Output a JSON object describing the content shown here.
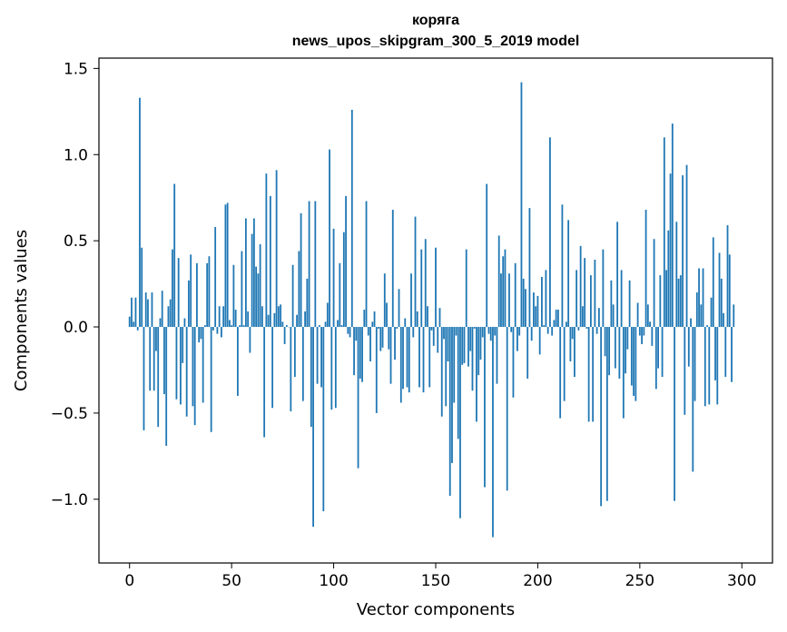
{
  "chart_data": {
    "type": "bar",
    "title": "коряга",
    "subtitle": "news_upos_skipgram_300_5_2019 model",
    "xlabel": "Vector components",
    "ylabel": "Components values",
    "xlim": [
      -15,
      315
    ],
    "ylim": [
      -1.37,
      1.56
    ],
    "xticks": [
      0,
      50,
      100,
      150,
      200,
      250,
      300
    ],
    "yticks": [
      -1.0,
      -0.5,
      0.0,
      0.5,
      1.0,
      1.5
    ],
    "ytick_labels": [
      "−1.0",
      "−0.5",
      "0.0",
      "0.5",
      "1.0",
      "1.5"
    ],
    "bar_color": "#1f77b4",
    "grid": false,
    "values": [
      0.06,
      0.17,
      0.03,
      0.17,
      -0.02,
      1.33,
      0.46,
      -0.6,
      0.2,
      0.16,
      -0.37,
      0.2,
      -0.37,
      -0.14,
      -0.58,
      0.05,
      0.21,
      -0.39,
      -0.69,
      0.12,
      0.16,
      0.45,
      0.83,
      -0.42,
      0.4,
      -0.45,
      -0.21,
      0.05,
      -0.52,
      0.27,
      0.42,
      -0.46,
      -0.57,
      0.37,
      -0.09,
      -0.07,
      -0.44,
      0.01,
      0.37,
      0.41,
      -0.61,
      -0.02,
      0.58,
      -0.04,
      0.12,
      -0.06,
      0.12,
      0.71,
      0.72,
      0.04,
      0.01,
      0.36,
      0.1,
      -0.4,
      0.01,
      0.44,
      0.01,
      0.63,
      0.09,
      -0.15,
      0.54,
      0.63,
      0.35,
      0.31,
      0.48,
      0.12,
      -0.64,
      0.89,
      0.07,
      0.76,
      -0.47,
      0.08,
      0.91,
      0.12,
      0.13,
      0.03,
      -0.1,
      0.01,
      0.0,
      -0.49,
      0.36,
      -0.29,
      0.07,
      0.44,
      0.66,
      -0.43,
      0.09,
      0.28,
      0.73,
      -0.58,
      -1.16,
      0.73,
      -0.33,
      0.01,
      -0.35,
      -1.07,
      0.03,
      0.14,
      1.03,
      -0.48,
      0.57,
      -0.47,
      0.04,
      0.37,
      0.01,
      0.55,
      0.76,
      -0.04,
      -0.06,
      1.26,
      -0.28,
      -0.08,
      -0.82,
      -0.3,
      -0.32,
      0.1,
      0.73,
      -0.05,
      -0.2,
      0.03,
      0.09,
      -0.5,
      -0.01,
      -0.14,
      -0.12,
      0.31,
      0.14,
      -0.13,
      -0.33,
      0.68,
      -0.19,
      -0.01,
      0.22,
      -0.44,
      -0.36,
      0.05,
      -0.35,
      -0.38,
      0.31,
      -0.06,
      0.64,
      0.09,
      -0.35,
      0.45,
      -0.38,
      0.51,
      0.12,
      -0.35,
      -0.02,
      -0.11,
      0.46,
      -0.15,
      0.11,
      -0.52,
      -0.07,
      -0.46,
      -0.2,
      -0.98,
      -0.79,
      -0.44,
      -0.05,
      -0.65,
      -1.11,
      -0.22,
      -0.21,
      0.45,
      -0.23,
      -0.14,
      -0.37,
      -0.01,
      -0.55,
      -0.28,
      -0.19,
      -0.06,
      -0.93,
      0.83,
      -0.04,
      -0.08,
      -1.22,
      -0.05,
      -0.33,
      0.53,
      0.31,
      0.41,
      0.45,
      -0.95,
      0.31,
      -0.03,
      -0.41,
      0.37,
      -0.14,
      -0.05,
      1.42,
      0.28,
      0.22,
      -0.3,
      0.69,
      -0.08,
      0.2,
      0.12,
      0.18,
      -0.16,
      0.29,
      0.01,
      0.33,
      -0.04,
      1.1,
      -0.05,
      0.04,
      0.1,
      0.1,
      -0.53,
      0.71,
      -0.43,
      0.03,
      0.62,
      -0.2,
      -0.07,
      -0.29,
      0.33,
      -0.02,
      0.47,
      0.12,
      0.4,
      -0.01,
      -0.55,
      0.3,
      -0.55,
      0.39,
      -0.04,
      0.11,
      -1.04,
      0.45,
      -0.17,
      -1.01,
      -0.28,
      0.27,
      0.13,
      -0.24,
      0.61,
      -0.3,
      0.33,
      -0.53,
      -0.27,
      -0.13,
      0.27,
      -0.34,
      -0.4,
      -0.43,
      0.14,
      -0.05,
      -0.1,
      -0.05,
      0.68,
      0.13,
      0.03,
      -0.11,
      0.51,
      -0.36,
      -0.24,
      0.3,
      -0.29,
      1.1,
      0.33,
      0.56,
      0.89,
      1.18,
      -1.01,
      0.61,
      0.28,
      0.3,
      0.88,
      -0.51,
      0.94,
      -0.23,
      0.05,
      -0.84,
      -0.43,
      0.2,
      0.34,
      0.13,
      0.34,
      -0.46,
      0.01,
      -0.45,
      0.17,
      0.52,
      -0.31,
      -0.45,
      0.43,
      0.28,
      0.08,
      -0.29,
      0.59,
      0.42,
      -0.32,
      0.13
    ]
  }
}
